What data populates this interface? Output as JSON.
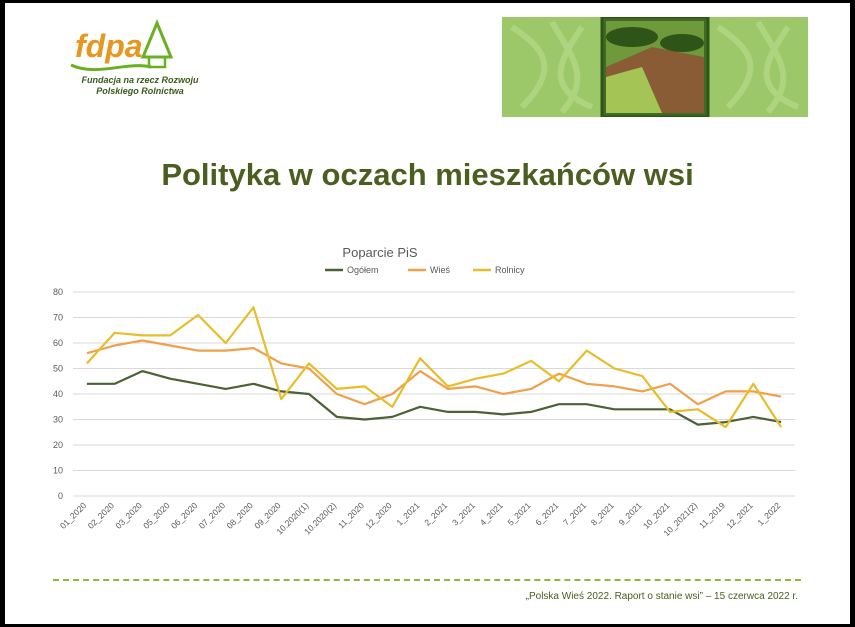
{
  "header": {
    "logo_text": "fdpa",
    "logo_subtitle": "Fundacja na rzecz Rozwoju\nPolskiego Rolnictwa"
  },
  "slide": {
    "title": "Polityka w oczach mieszkańców wsi"
  },
  "footer": {
    "text": "„Polska Wieś 2022. Raport o stanie wsi” – 15 czerwca 2022 r."
  },
  "chart_data": {
    "type": "line",
    "title": "Poparcie PiS",
    "xlabel": "",
    "ylabel": "",
    "ylim": [
      0,
      80
    ],
    "yticks": [
      0,
      10,
      20,
      30,
      40,
      50,
      60,
      70,
      80
    ],
    "grid": true,
    "legend_position": "top",
    "categories": [
      "01_2020",
      "02_2020",
      "03_2020",
      "05_2020",
      "06_2020",
      "07_2020",
      "08_2020",
      "09_2020",
      "10.2020(1)",
      "10.2020(2)",
      "11_2020",
      "12_2020",
      "1_2021",
      "2_2021",
      "3_2021",
      "4_2021",
      "5_2021",
      "6_2021",
      "7_2021",
      "8_2021",
      "9_2021",
      "10_2021",
      "10_2021(2)",
      "11_2019",
      "12_2021",
      "1_2022"
    ],
    "series": [
      {
        "name": "Ogółem",
        "color": "#4a6234",
        "values": [
          44,
          44,
          49,
          46,
          44,
          42,
          44,
          41,
          40,
          31,
          30,
          31,
          35,
          33,
          33,
          32,
          33,
          36,
          36,
          34,
          34,
          34,
          28,
          29,
          31,
          29
        ]
      },
      {
        "name": "Wieś",
        "color": "#f0a04b",
        "values": [
          56,
          59,
          61,
          59,
          57,
          57,
          58,
          52,
          50,
          40,
          36,
          40,
          49,
          42,
          43,
          40,
          42,
          48,
          44,
          43,
          41,
          44,
          36,
          41,
          41,
          39
        ]
      },
      {
        "name": "Rolnicy",
        "color": "#e8bd2a",
        "values": [
          52,
          64,
          63,
          63,
          71,
          60,
          74,
          38,
          52,
          42,
          43,
          35,
          54,
          43,
          46,
          48,
          53,
          45,
          57,
          50,
          47,
          33,
          34,
          27,
          44,
          27
        ]
      }
    ]
  }
}
